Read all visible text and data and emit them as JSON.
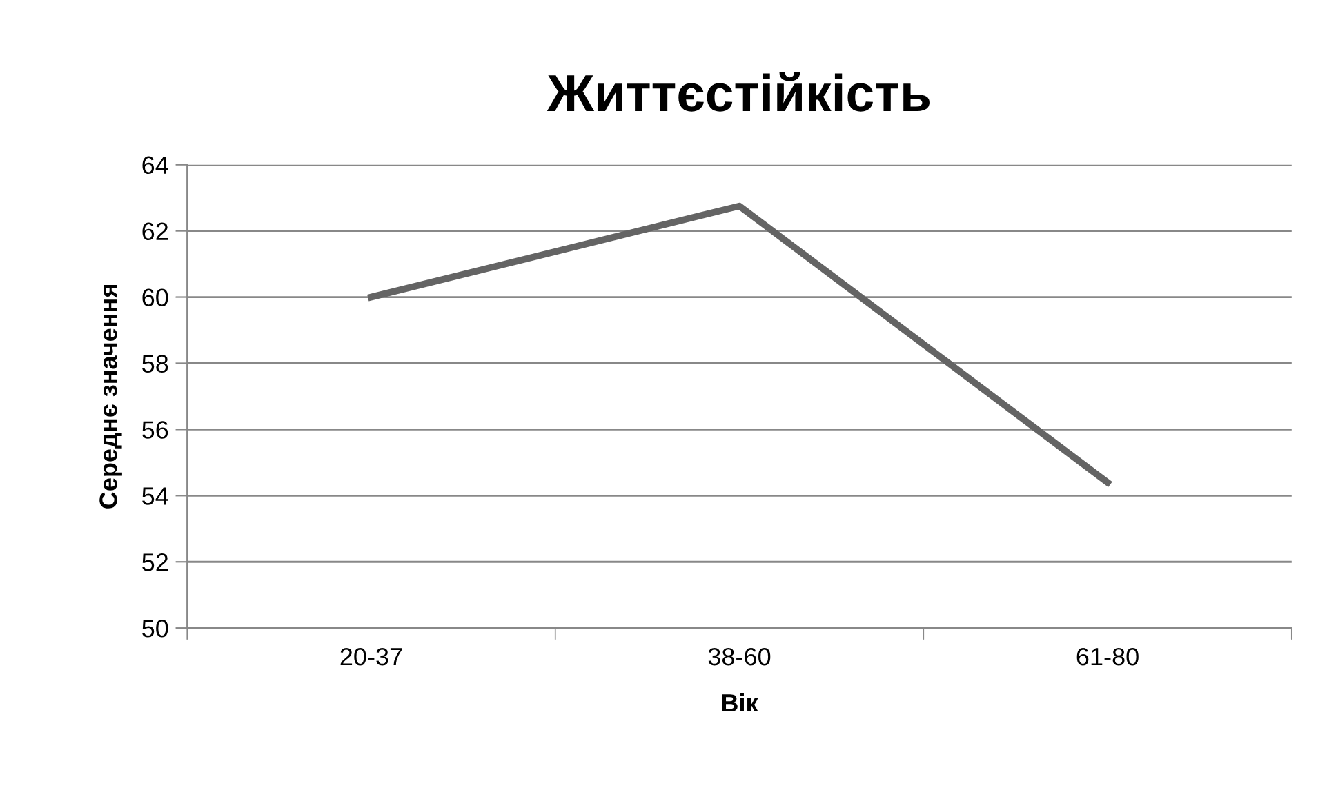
{
  "chart_data": {
    "type": "line",
    "title": "Життєстійкість",
    "xlabel": "Вік",
    "ylabel": "Середнє значення",
    "categories": [
      "20-37",
      "38-60",
      "61-80"
    ],
    "series": [
      {
        "color": "#646464",
        "values": [
          60.0,
          62.75,
          54.4
        ]
      }
    ],
    "ylim": [
      50,
      64
    ],
    "yticks": [
      50,
      52,
      54,
      56,
      58,
      60,
      62,
      64
    ],
    "grid": "y",
    "legend": false,
    "marker": "none",
    "line_style": "solid"
  }
}
